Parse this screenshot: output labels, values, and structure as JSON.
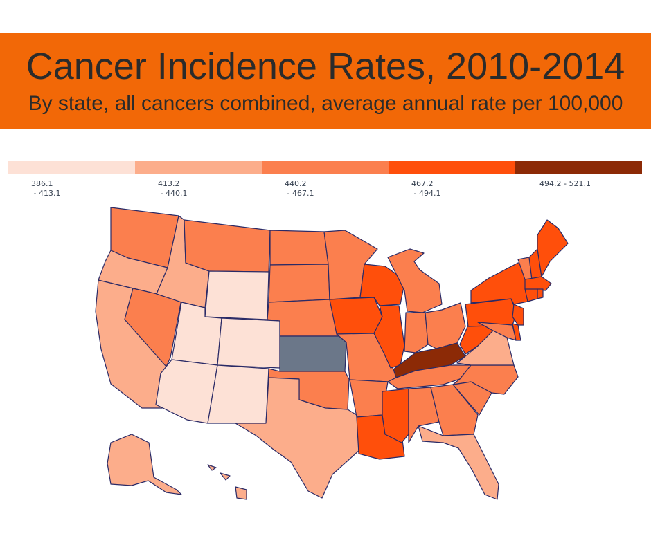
{
  "title": "Cancer Incidence Rates, 2010-2014",
  "subtitle": "By state, all cancers combined, average annual rate per 100,000",
  "colors": {
    "banner": "#f26807",
    "no_data": "#6b7789",
    "bins": [
      "#fde1d6",
      "#fcad8b",
      "#fb7f4e",
      "#ff4f0b",
      "#8c2a06"
    ]
  },
  "legend": [
    {
      "range": "386.1\n - 413.1"
    },
    {
      "range": "413.2\n - 440.1"
    },
    {
      "range": "440.2\n - 467.1"
    },
    {
      "range": "467.2\n - 494.1"
    },
    {
      "range": "494.2 - 521.1"
    }
  ],
  "states": {
    "WA": 2,
    "OR": 1,
    "CA": 1,
    "NV": 2,
    "ID": 1,
    "MT": 2,
    "WY": 0,
    "UT": 0,
    "AZ": 0,
    "CO": 0,
    "NM": 0,
    "ND": 2,
    "SD": 2,
    "NE": 2,
    "KS": "none",
    "OK": 2,
    "TX": 1,
    "MN": 2,
    "IA": 3,
    "MO": 2,
    "AR": 2,
    "LA": 3,
    "WI": 3,
    "IL": 3,
    "MI": 2,
    "IN": 2,
    "OH": 2,
    "KY": 4,
    "TN": 2,
    "MS": 3,
    "AL": 2,
    "GA": 2,
    "FL": 1,
    "SC": 2,
    "NC": 2,
    "VA": 1,
    "WV": 3,
    "PA": 3,
    "NY": 3,
    "NJ": 3,
    "DE": 3,
    "MD": 2,
    "ME": 3,
    "VT": 2,
    "NH": 3,
    "MA": 3,
    "CT": 3,
    "RI": 3,
    "AK": 1,
    "HI": 1
  }
}
